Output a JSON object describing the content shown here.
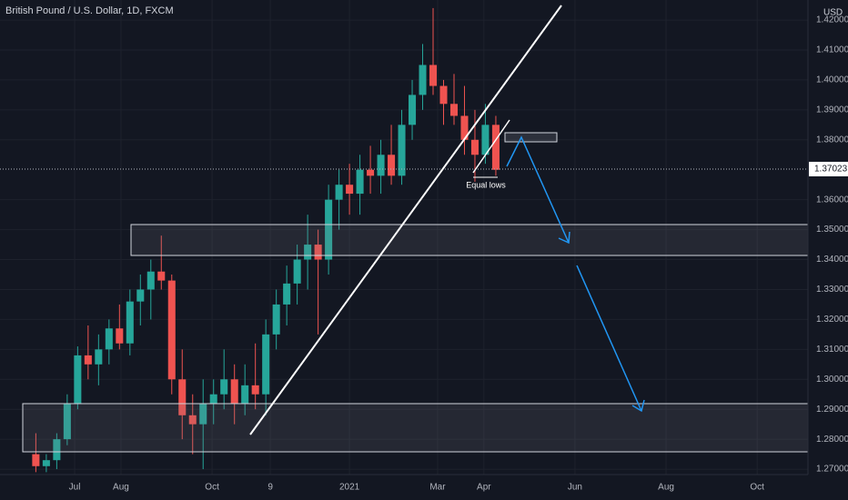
{
  "chart_data": {
    "type": "candlestick",
    "title": "British Pound / U.S. Dollar, 1D, FXCM",
    "currency": "USD",
    "current_price": 1.37023,
    "current_price_label": "1.37023",
    "annotation": "Equal lows",
    "up_color": "#26a69a",
    "down_color": "#ef5350",
    "grid": true,
    "x": [
      4,
      11,
      18,
      25,
      32,
      39,
      46,
      53,
      60,
      67,
      74,
      81,
      88,
      95,
      102,
      109,
      116,
      123,
      130,
      137,
      144,
      151,
      158,
      165,
      172,
      179,
      186,
      193,
      200,
      207,
      214,
      221,
      228,
      235,
      242,
      249,
      256,
      263,
      270,
      277,
      284,
      291,
      298,
      305,
      312
    ],
    "open": [
      1.275,
      1.271,
      1.273,
      1.28,
      1.292,
      1.308,
      1.305,
      1.31,
      1.317,
      1.312,
      1.326,
      1.33,
      1.336,
      1.333,
      1.3,
      1.288,
      1.285,
      1.292,
      1.295,
      1.3,
      1.292,
      1.298,
      1.295,
      1.315,
      1.325,
      1.332,
      1.34,
      1.345,
      1.34,
      1.36,
      1.365,
      1.362,
      1.37,
      1.368,
      1.375,
      1.368,
      1.385,
      1.395,
      1.405,
      1.398,
      1.392,
      1.388,
      1.38,
      1.375,
      1.385
    ],
    "high": [
      1.282,
      1.275,
      1.282,
      1.295,
      1.311,
      1.318,
      1.315,
      1.32,
      1.325,
      1.33,
      1.335,
      1.34,
      1.348,
      1.335,
      1.31,
      1.295,
      1.3,
      1.3,
      1.31,
      1.305,
      1.305,
      1.312,
      1.32,
      1.33,
      1.338,
      1.345,
      1.355,
      1.35,
      1.365,
      1.37,
      1.372,
      1.375,
      1.378,
      1.38,
      1.385,
      1.39,
      1.4,
      1.412,
      1.424,
      1.4,
      1.402,
      1.398,
      1.39,
      1.392,
      1.388
    ],
    "low": [
      1.269,
      1.269,
      1.27,
      1.278,
      1.29,
      1.3,
      1.298,
      1.305,
      1.31,
      1.308,
      1.318,
      1.32,
      1.33,
      1.295,
      1.28,
      1.275,
      1.27,
      1.285,
      1.29,
      1.285,
      1.288,
      1.29,
      1.288,
      1.31,
      1.318,
      1.325,
      1.33,
      1.315,
      1.335,
      1.35,
      1.355,
      1.355,
      1.362,
      1.362,
      1.365,
      1.365,
      1.38,
      1.39,
      1.395,
      1.385,
      1.385,
      1.375,
      1.366,
      1.372,
      1.368
    ],
    "close": [
      1.271,
      1.273,
      1.28,
      1.292,
      1.308,
      1.305,
      1.31,
      1.317,
      1.312,
      1.326,
      1.33,
      1.336,
      1.333,
      1.3,
      1.288,
      1.285,
      1.292,
      1.295,
      1.3,
      1.292,
      1.298,
      1.295,
      1.315,
      1.325,
      1.332,
      1.34,
      1.345,
      1.34,
      1.36,
      1.365,
      1.362,
      1.37,
      1.368,
      1.375,
      1.368,
      1.385,
      1.395,
      1.405,
      1.398,
      1.392,
      1.388,
      1.38,
      1.375,
      1.385,
      1.37
    ],
    "xlim": [
      -20,
      521
    ],
    "xticks": [
      {
        "value": 30,
        "label": "Jul"
      },
      {
        "value": 61,
        "label": "Aug"
      },
      {
        "value": 122,
        "label": "Oct"
      },
      {
        "value": 161,
        "label": "9"
      },
      {
        "value": 214,
        "label": "2021"
      },
      {
        "value": 273,
        "label": "Mar"
      },
      {
        "value": 304,
        "label": "Apr"
      },
      {
        "value": 365,
        "label": "Jun"
      },
      {
        "value": 426,
        "label": "Aug"
      },
      {
        "value": 487,
        "label": "Oct"
      }
    ],
    "ylim": [
      1.2682,
      1.4267
    ],
    "yticks": [
      {
        "value": 1.27,
        "label": "1.27000"
      },
      {
        "value": 1.28,
        "label": "1.28000"
      },
      {
        "value": 1.29,
        "label": "1.29000"
      },
      {
        "value": 1.3,
        "label": "1.30000"
      },
      {
        "value": 1.31,
        "label": "1.31000"
      },
      {
        "value": 1.32,
        "label": "1.32000"
      },
      {
        "value": 1.33,
        "label": "1.33000"
      },
      {
        "value": 1.34,
        "label": "1.34000"
      },
      {
        "value": 1.35,
        "label": "1.35000"
      },
      {
        "value": 1.36,
        "label": "1.36000"
      },
      {
        "value": 1.38,
        "label": "1.38000"
      },
      {
        "value": 1.39,
        "label": "1.39000"
      },
      {
        "value": 1.4,
        "label": "1.40000"
      },
      {
        "value": 1.41,
        "label": "1.41000"
      },
      {
        "value": 1.42,
        "label": "1.42000"
      }
    ]
  }
}
